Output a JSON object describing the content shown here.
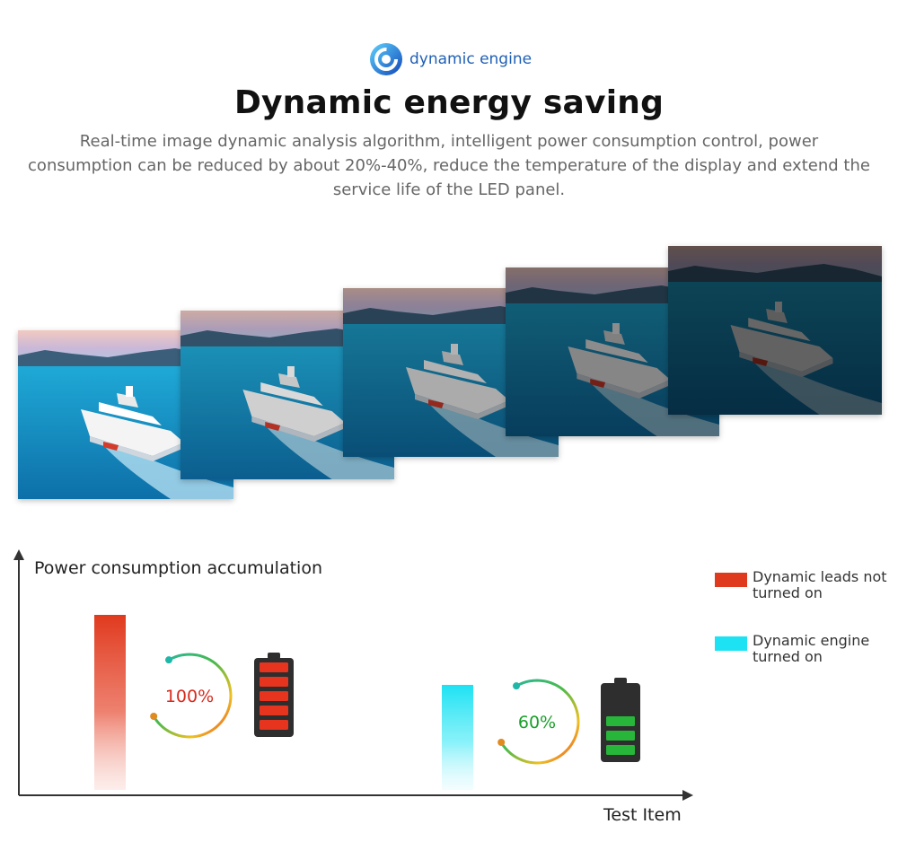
{
  "header": {
    "badge_icon": "dynamic-engine-logo-icon",
    "badge_text": "dynamic engine",
    "title": "Dynamic energy saving",
    "description": "Real-time image dynamic analysis algorithm, intelligent power consumption control, power consumption can be reduced by about 20%-40%, reduce the temperature of the display and extend the service life of the LED panel."
  },
  "panels": {
    "count": 5,
    "icon": "cruise-ship-photo",
    "brightness_levels": [
      1.0,
      0.85,
      0.7,
      0.55,
      0.4
    ]
  },
  "chart_data": {
    "type": "bar",
    "title": "",
    "ylabel": "Power consumption accumulation",
    "xlabel": "Test Item",
    "categories": [
      "Dynamic leads not turned on",
      "Dynamic engine turned on"
    ],
    "series": [
      {
        "name": "Dynamic leads not turned on",
        "values": [
          100,
          null
        ],
        "color": "#e03a1e"
      },
      {
        "name": "Dynamic engine turned on",
        "values": [
          null,
          60
        ],
        "color": "#1de2f3"
      }
    ],
    "data_labels": [
      "100%",
      "60%"
    ],
    "label_colors": [
      "#d72b1f",
      "#1a9f2a"
    ],
    "battery_cells": [
      {
        "filled": 5,
        "color": "#e6341f"
      },
      {
        "filled": 3,
        "color": "#27b53a"
      }
    ],
    "ylim": [
      0,
      125
    ],
    "legend_position": "right",
    "grid": false
  }
}
